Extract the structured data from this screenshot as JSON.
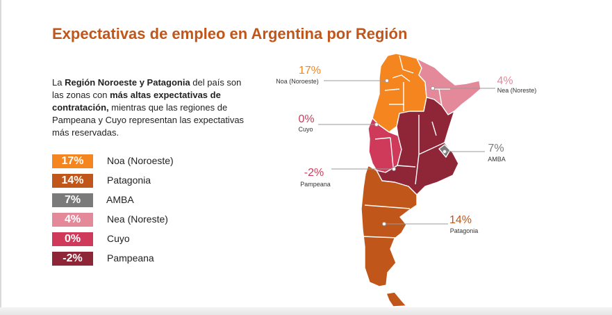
{
  "title": "Expectativas de empleo en Argentina por Región",
  "description": {
    "p1": "La ",
    "b1": "Región Noroeste y Patagonia",
    "p2": " del país son las zonas con ",
    "b2": "más altas expectativas de contratación,",
    "p3": " mientras que las regiones de Pampeana y Cuyo representan las expectativas más reservadas."
  },
  "legend": [
    {
      "value": "17%",
      "label": "Noa (Noroeste)",
      "color": "#f5861f"
    },
    {
      "value": "14%",
      "label": "Patagonia",
      "color": "#c0561a"
    },
    {
      "value": "7%",
      "label": "AMBA",
      "color": "#7a7a7a"
    },
    {
      "value": "4%",
      "label": "Nea (Noreste)",
      "color": "#e4899a"
    },
    {
      "value": "0%",
      "label": "Cuyo",
      "color": "#d03a5a"
    },
    {
      "value": "-2%",
      "label": "Pampeana",
      "color": "#8e2638"
    }
  ],
  "map_labels": {
    "noa": {
      "value": "17%",
      "name": "Noa (Noroeste)",
      "color": "#f5861f"
    },
    "nea": {
      "value": "4%",
      "name": "Nea (Noreste)",
      "color": "#e4899a"
    },
    "cuyo": {
      "value": "0%",
      "name": "Cuyo",
      "color": "#d03a5a"
    },
    "amba": {
      "value": "7%",
      "name": "AMBA",
      "color": "#7a7a7a"
    },
    "pampeana": {
      "value": "-2%",
      "name": "Pampeana",
      "color": "#d03a5a"
    },
    "patagonia": {
      "value": "14%",
      "name": "Patagonia",
      "color": "#c0561a"
    }
  }
}
